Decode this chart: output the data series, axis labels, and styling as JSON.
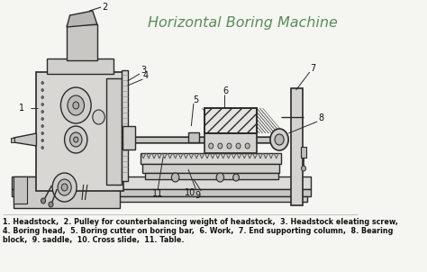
{
  "title": "Horizontal Boring Machine",
  "title_color": "#5a8c5a",
  "title_fontsize": 11.5,
  "bg_color": "#f5f5f2",
  "lc": "#2a2a2a",
  "caption_line1": "1. Headstock,  2. Pulley for counterbalancing weight of headstock,  3. Headstock eleating screw,",
  "caption_line2": "4. Boring head,  5. Boring cutter on boring bar,  6. Work,  7. End supporting column,  8. Bearing",
  "caption_line3": "block,  9. saddle,  10. Cross slide,  11. Table.",
  "caption_fontsize": 5.8,
  "caption_fontsize_bold": true,
  "caption_color": "#111111",
  "diagram_bg": "#eeece8"
}
